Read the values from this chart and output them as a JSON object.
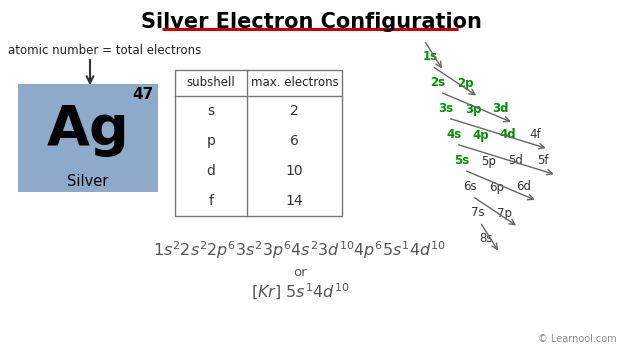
{
  "title": "Silver Electron Configuration",
  "title_color": "#000000",
  "title_underline_color": "#cc0000",
  "bg_color": "#ffffff",
  "element_symbol": "Ag",
  "element_name": "Silver",
  "element_number": "47",
  "element_box_color": "#8eaacb",
  "atomic_note": "atomic number = total electrons",
  "table_headers": [
    "subshell",
    "max. electrons"
  ],
  "table_rows": [
    [
      "s",
      "2"
    ],
    [
      "p",
      "6"
    ],
    [
      "d",
      "10"
    ],
    [
      "f",
      "14"
    ]
  ],
  "diagonal_rows": [
    [
      "1s"
    ],
    [
      "2s",
      "2p"
    ],
    [
      "3s",
      "3p",
      "3d"
    ],
    [
      "4s",
      "4p",
      "4d",
      "4f"
    ],
    [
      "5s",
      "5p",
      "5d",
      "5f"
    ],
    [
      "6s",
      "6p",
      "6d"
    ],
    [
      "7s",
      "7p"
    ],
    [
      "8s"
    ]
  ],
  "green_items": [
    "1s",
    "2s",
    "2p",
    "3s",
    "3p",
    "3d",
    "4s",
    "4p",
    "4d",
    "5s"
  ],
  "learnool_text": "© Learnool.com"
}
